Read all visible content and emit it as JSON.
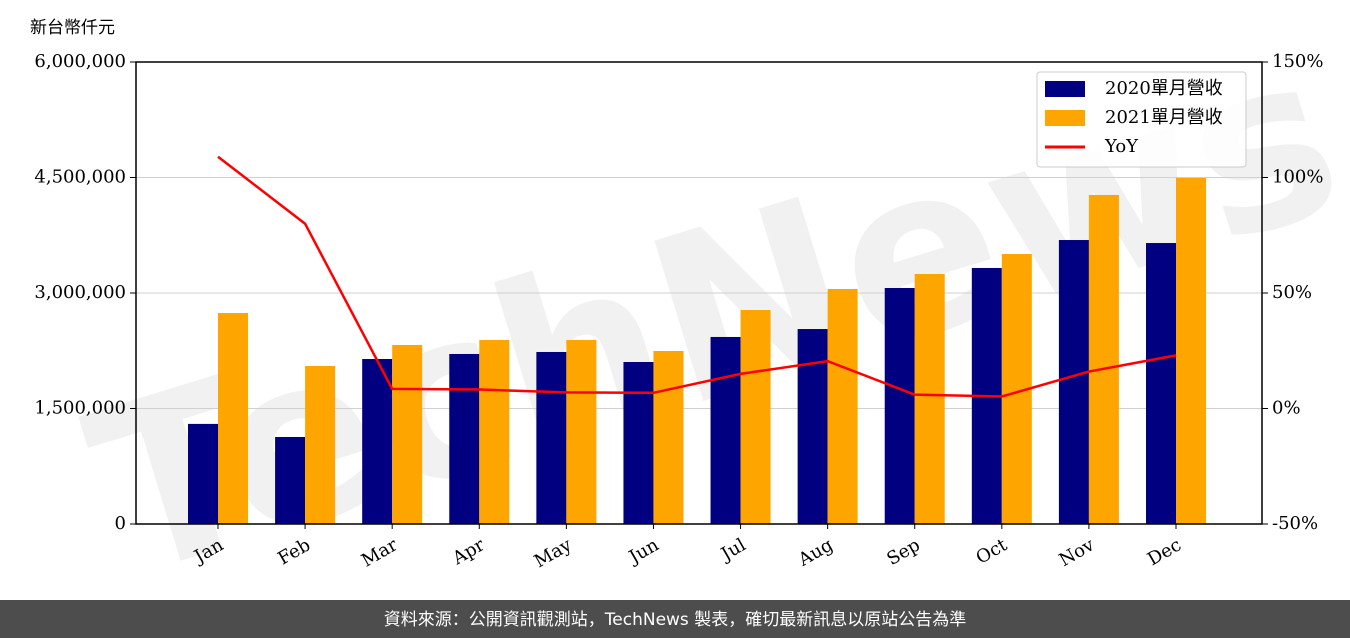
{
  "chart_data": {
    "type": "bar-line",
    "y_label": "新台幣仟元",
    "watermark": "TechNews",
    "footer": "資料來源：公開資訊觀測站，TechNews 製表，確切最新訊息以原站公告為準",
    "categories": [
      "Jan",
      "Feb",
      "Mar",
      "Apr",
      "May",
      "Jun",
      "Jul",
      "Aug",
      "Sep",
      "Oct",
      "Nov",
      "Dec"
    ],
    "series": [
      {
        "name": "2020單月營收",
        "type": "bar",
        "color": "#000080",
        "values": [
          1300000,
          1130000,
          2143000,
          2208000,
          2234000,
          2104000,
          2429000,
          2532000,
          3065000,
          3325000,
          3688000,
          3649000
        ]
      },
      {
        "name": "2021單月營收",
        "type": "bar",
        "color": "#ffa500",
        "values": [
          2740000,
          2052000,
          2325000,
          2390000,
          2390000,
          2247000,
          2779000,
          3052000,
          3247000,
          3506000,
          4273000,
          4494000
        ]
      },
      {
        "name": "YoY",
        "type": "line",
        "axis": "y2",
        "color": "#ff0000",
        "values": [
          109,
          80,
          8.5,
          8.2,
          7,
          6.8,
          15,
          20.5,
          6,
          5.2,
          16,
          23
        ]
      }
    ],
    "ylim": [
      0,
      6000000
    ],
    "yticks": [
      0,
      {
        "value": 1500000,
        "label": "1,500,000"
      },
      {
        "value": 3000000,
        "label": "3,000,000"
      },
      {
        "value": 4500000,
        "label": "4,500,000"
      },
      {
        "value": 6000000,
        "label": "6,000,000"
      }
    ],
    "y2lim": [
      -50,
      150
    ],
    "y2ticks": [
      {
        "value": -50,
        "label": "-50%"
      },
      {
        "value": 0,
        "label": "0%"
      },
      {
        "value": 50,
        "label": "50%"
      },
      {
        "value": 100,
        "label": "100%"
      },
      {
        "value": 150,
        "label": "150%"
      }
    ],
    "grid": true,
    "legend": "upper right"
  }
}
